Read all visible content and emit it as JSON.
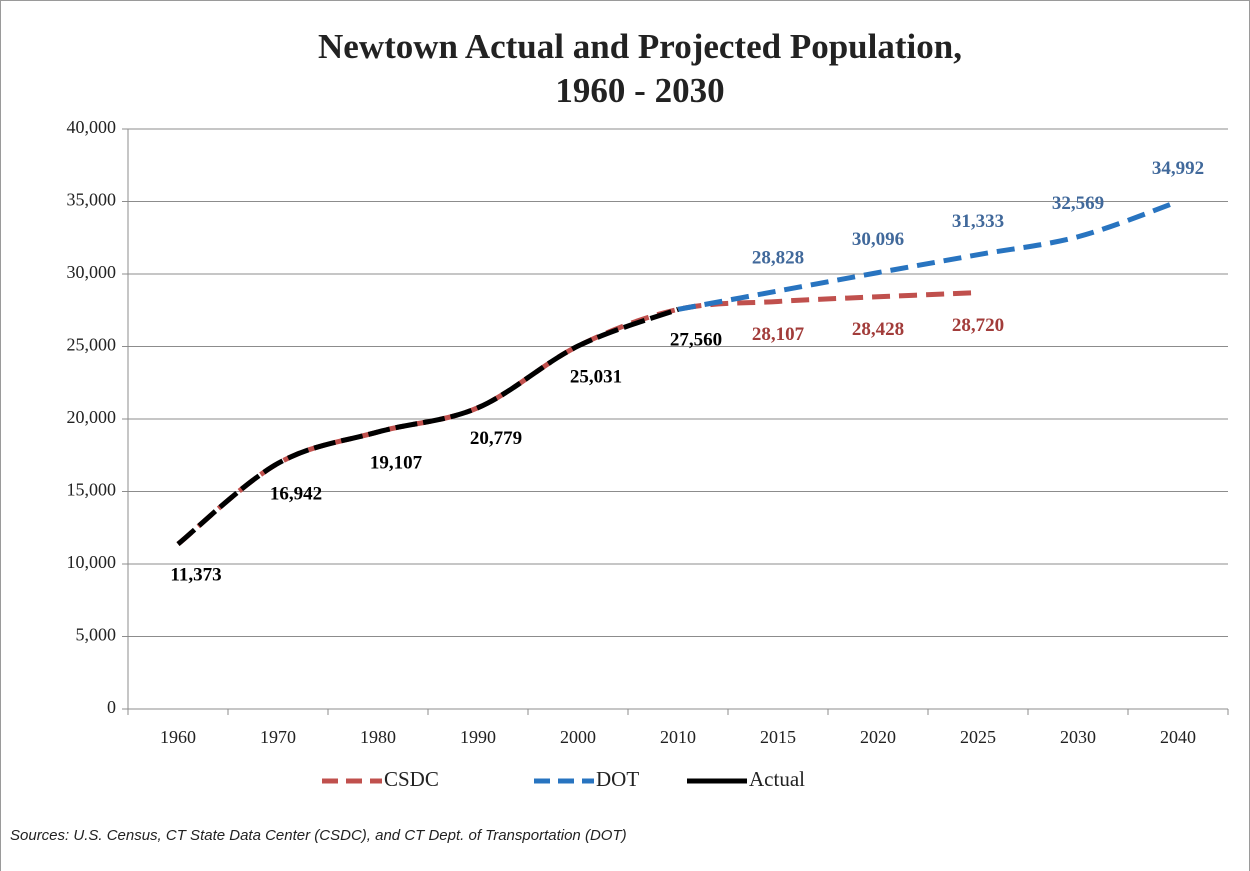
{
  "chart_data": {
    "type": "line",
    "title": [
      "Newtown Actual and Projected Population,",
      "1960 - 2030"
    ],
    "categories": [
      "1960",
      "1970",
      "1980",
      "1990",
      "2000",
      "2010",
      "2015",
      "2020",
      "2025",
      "2030",
      "2040"
    ],
    "series": [
      {
        "name": "CSDC",
        "color": "#c0504d",
        "label_color": "#a23c3a",
        "values": [
          11373,
          16942,
          19107,
          20779,
          25031,
          27560,
          28107,
          28428,
          28720,
          null,
          null
        ],
        "value_labels": [
          null,
          null,
          null,
          null,
          null,
          null,
          "28,107",
          "28,428",
          "28,720",
          null,
          null
        ]
      },
      {
        "name": "DOT",
        "color": "#2874c0",
        "label_color": "#41699b",
        "values": [
          null,
          null,
          null,
          null,
          null,
          27560,
          28828,
          30096,
          31333,
          32569,
          34992
        ],
        "value_labels": [
          null,
          null,
          null,
          null,
          null,
          null,
          "28,828",
          "30,096",
          "31,333",
          "32,569",
          "34,992"
        ]
      },
      {
        "name": "Actual",
        "color": "#000000",
        "label_color": "#000000",
        "values": [
          11373,
          16942,
          19107,
          20779,
          25031,
          27560,
          null,
          null,
          null,
          null,
          null
        ],
        "value_labels": [
          "11,373",
          "16,942",
          "19,107",
          "20,779",
          "25,031",
          "27,560",
          null,
          null,
          null,
          null,
          null
        ]
      }
    ],
    "ylim": [
      0,
      40000
    ],
    "yticks": [
      0,
      {
        "value": 5000,
        "label": "5,000"
      },
      {
        "value": 10000,
        "label": "10,000"
      },
      {
        "value": 15000,
        "label": "15,000"
      },
      {
        "value": 20000,
        "label": "20,000"
      },
      {
        "value": 25000,
        "label": "25,000"
      },
      {
        "value": 30000,
        "label": "30,000"
      },
      {
        "value": 35000,
        "label": "35,000"
      },
      {
        "value": 40000,
        "label": "40,000"
      }
    ],
    "grid": true,
    "legend": "bottom",
    "source": "Sources: U.S. Census, CT State Data Center (CSDC), and CT Dept. of Transportation (DOT)"
  }
}
